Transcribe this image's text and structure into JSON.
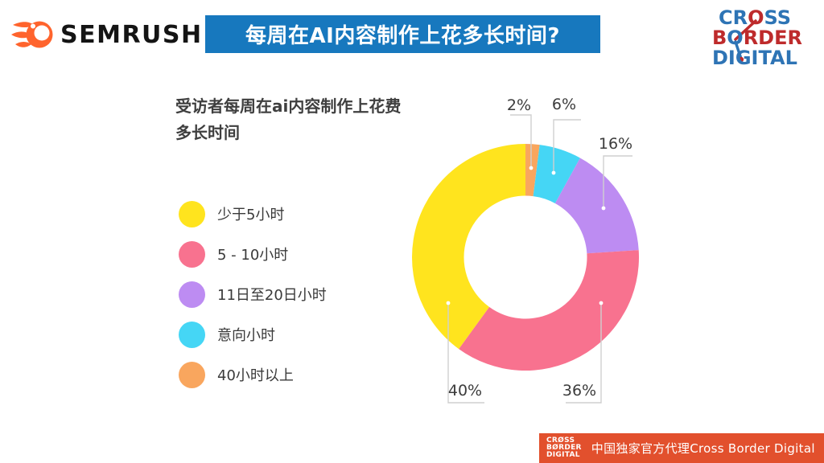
{
  "header": {
    "brand": "SEMRUSH",
    "banner_title": "每周在AI内容制作上花多长时间?",
    "banner_color": "#1778BE"
  },
  "cbd_logo": {
    "row1_a": "CR",
    "row1_o": "O",
    "row1_b": "SS",
    "row2_a": "B",
    "row2_o": "O",
    "row2_b": "RDER",
    "row3": "DIGITAL",
    "blue": "#2E74B5",
    "red": "#BE2B2C"
  },
  "chart_data": {
    "type": "donut",
    "title": "受访者每周在ai内容制作上花费多长时间",
    "title_lines": [
      "受访者每周在ai内容制作上花费",
      "多长时间"
    ],
    "order_clockwise_from_top": [
      "40小时以上",
      "意向小时",
      "11日至20日小时",
      "5 - 10小时",
      "少于5小时"
    ],
    "segments": [
      {
        "label": "少于5小时",
        "value": 40,
        "pct_label": "40%",
        "color": "#FFE41E"
      },
      {
        "label": "5 - 10小时",
        "value": 36,
        "pct_label": "36%",
        "color": "#F8728F"
      },
      {
        "label": "11日至20日小时",
        "value": 16,
        "pct_label": "16%",
        "color": "#BD8CF2"
      },
      {
        "label": "意向小时",
        "value": 6,
        "pct_label": "6%",
        "color": "#45D6F5"
      },
      {
        "label": "40小时以上",
        "value": 2,
        "pct_label": "2%",
        "color": "#F9A65E"
      }
    ]
  },
  "footer": {
    "mini_logo_lines": [
      "CRØSS",
      "BØRDER",
      "DIGITAL"
    ],
    "text": "中国独家官方代理Cross Border Digital",
    "bg": "#E2502D"
  },
  "brand_colors": {
    "semrush_orange": "#FF642D"
  }
}
